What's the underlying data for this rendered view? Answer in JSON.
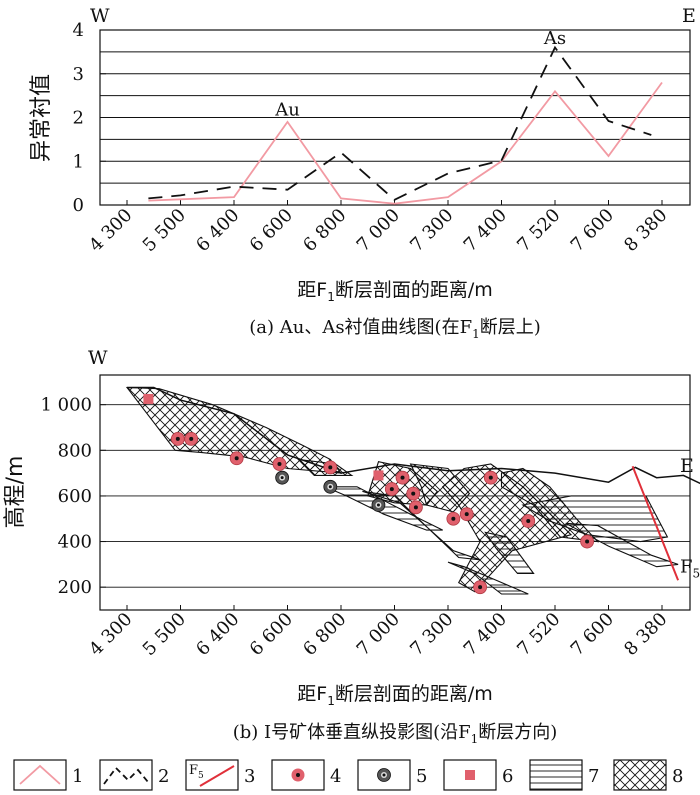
{
  "chart_data": [
    {
      "type": "line",
      "id": "a",
      "caption_main": "(a) Au、As衬值曲线图(在F",
      "caption_sub": "1",
      "caption_tail": "断层上)",
      "ylabel": "异常衬值",
      "xlabel_main": "距F",
      "xlabel_sub": "1",
      "xlabel_tail": "断层剖面的距离/m",
      "ylim": [
        0,
        4
      ],
      "yticks": [
        0,
        1,
        2,
        3,
        4
      ],
      "categories": [
        "4 300",
        "5 500",
        "6 400",
        "6 600",
        "6 800",
        "7 000",
        "7 300",
        "7 400",
        "7 520",
        "7 600",
        "8 380"
      ],
      "corner_left": "W",
      "corner_right": "E",
      "series": [
        {
          "name": "Au",
          "color": "#f29aa3",
          "dash": "none",
          "points": [
            [
              0.4,
              0.1
            ],
            [
              1,
              0.13
            ],
            [
              2,
              0.18
            ],
            [
              3,
              1.9
            ],
            [
              4,
              0.15
            ],
            [
              5,
              0.03
            ],
            [
              6,
              0.18
            ],
            [
              7,
              1.0
            ],
            [
              8,
              2.6
            ],
            [
              9,
              1.12
            ],
            [
              10,
              2.8
            ]
          ]
        },
        {
          "name": "As",
          "color": "#111111",
          "dash": "14 9",
          "points": [
            [
              0.4,
              0.15
            ],
            [
              1,
              0.22
            ],
            [
              2,
              0.42
            ],
            [
              3,
              0.35
            ],
            [
              4,
              1.2
            ],
            [
              5,
              0.12
            ],
            [
              6,
              0.72
            ],
            [
              7,
              1.02
            ],
            [
              8,
              3.6
            ],
            [
              9,
              1.92
            ],
            [
              9.8,
              1.6
            ]
          ]
        }
      ],
      "annotations": [
        {
          "text": "Au",
          "at": [
            3,
            2.05
          ]
        },
        {
          "text": "As",
          "at": [
            8,
            3.68
          ]
        }
      ]
    },
    {
      "type": "area",
      "id": "b",
      "caption_main": "(b) Ⅰ号矿体垂直纵投影图(沿F",
      "caption_sub": "1",
      "caption_tail": "断层方向)",
      "ylabel": "高程/m",
      "xlabel_main": "距F",
      "xlabel_sub": "1",
      "xlabel_tail": "断层剖面的距离/m",
      "ylim": [
        100,
        1130
      ],
      "yticks": [
        200,
        400,
        600,
        800,
        "1 000"
      ],
      "ytick_values": [
        200,
        400,
        600,
        800,
        1000
      ],
      "gridlines": [
        200,
        400,
        600,
        800,
        1000
      ],
      "categories": [
        "4 300",
        "5 500",
        "6 400",
        "6 600",
        "6 800",
        "7 000",
        "7 300",
        "7 400",
        "7 520",
        "7 600",
        "8 380"
      ],
      "corner_left": "W",
      "corner_right": "E",
      "fault_label": "F",
      "fault_label_sub": "5",
      "topography": [
        [
          0.0,
          1075
        ],
        [
          0.5,
          1075
        ],
        [
          1,
          1020
        ],
        [
          2,
          960
        ],
        [
          3,
          780
        ],
        [
          4,
          700
        ],
        [
          5,
          740
        ],
        [
          6,
          710
        ],
        [
          7,
          720
        ],
        [
          8,
          700
        ],
        [
          9,
          660
        ],
        [
          9.5,
          725
        ],
        [
          9.9,
          680
        ],
        [
          10.4,
          690
        ],
        [
          11.2,
          600
        ]
      ],
      "fault": [
        [
          9.45,
          730
        ],
        [
          10.3,
          230
        ]
      ],
      "ore_bodies_crosshatch": [
        [
          [
            0.0,
            1075
          ],
          [
            0.6,
            1070
          ],
          [
            1.6,
            1000
          ],
          [
            2.6,
            900
          ],
          [
            3.3,
            820
          ],
          [
            3.8,
            760
          ],
          [
            4.0,
            700
          ],
          [
            3.0,
            720
          ],
          [
            2.2,
            770
          ],
          [
            1.4,
            790
          ],
          [
            0.9,
            800
          ]
        ],
        [
          [
            3.2,
            760
          ],
          [
            3.9,
            740
          ],
          [
            4.2,
            690
          ],
          [
            3.5,
            690
          ]
        ],
        [
          [
            4.7,
            750
          ],
          [
            5.3,
            720
          ],
          [
            5.8,
            620
          ],
          [
            5.6,
            560
          ],
          [
            5.0,
            570
          ],
          [
            4.5,
            600
          ]
        ],
        [
          [
            5.3,
            740
          ],
          [
            6.0,
            720
          ],
          [
            6.4,
            610
          ],
          [
            6.1,
            530
          ],
          [
            5.6,
            560
          ],
          [
            5.5,
            640
          ]
        ],
        [
          [
            6.3,
            720
          ],
          [
            6.8,
            740
          ],
          [
            7.4,
            640
          ],
          [
            8.3,
            430
          ],
          [
            7.2,
            360
          ],
          [
            6.5,
            180
          ],
          [
            6.2,
            220
          ],
          [
            6.6,
            400
          ],
          [
            6.2,
            560
          ],
          [
            5.9,
            640
          ]
        ],
        [
          [
            7.0,
            700
          ],
          [
            7.4,
            720
          ],
          [
            7.9,
            640
          ],
          [
            8.4,
            500
          ],
          [
            8.8,
            400
          ],
          [
            8.1,
            420
          ],
          [
            7.6,
            560
          ],
          [
            7.0,
            640
          ]
        ]
      ],
      "ore_bodies_hatched": [
        [
          [
            3.7,
            640
          ],
          [
            4.3,
            640
          ],
          [
            5.3,
            520
          ],
          [
            5.9,
            450
          ],
          [
            5.6,
            450
          ],
          [
            4.8,
            520
          ],
          [
            4.1,
            600
          ]
        ],
        [
          [
            4.4,
            620
          ],
          [
            5.0,
            600
          ],
          [
            6.2,
            330
          ],
          [
            6.6,
            320
          ],
          [
            6.1,
            360
          ],
          [
            5.1,
            570
          ]
        ],
        [
          [
            6.7,
            440
          ],
          [
            7.1,
            420
          ],
          [
            7.6,
            260
          ],
          [
            7.3,
            260
          ],
          [
            6.9,
            370
          ]
        ],
        [
          [
            7.4,
            560
          ],
          [
            8.3,
            600
          ],
          [
            9.7,
            600
          ],
          [
            10.1,
            420
          ],
          [
            9.6,
            400
          ],
          [
            8.6,
            430
          ],
          [
            7.9,
            490
          ]
        ],
        [
          [
            8.2,
            480
          ],
          [
            8.8,
            470
          ],
          [
            9.8,
            340
          ],
          [
            10.3,
            300
          ],
          [
            9.9,
            290
          ],
          [
            9.0,
            380
          ]
        ],
        [
          [
            6.0,
            310
          ],
          [
            6.5,
            260
          ],
          [
            7.0,
            170
          ],
          [
            7.5,
            170
          ],
          [
            6.9,
            230
          ],
          [
            6.3,
            290
          ]
        ]
      ],
      "samples_au": [
        [
          0.95,
          850
        ],
        [
          1.2,
          850
        ],
        [
          2.05,
          765
        ],
        [
          2.85,
          740
        ],
        [
          3.8,
          725
        ],
        [
          4.95,
          630
        ],
        [
          5.15,
          680
        ],
        [
          5.35,
          610
        ],
        [
          5.4,
          550
        ],
        [
          6.1,
          500
        ],
        [
          6.35,
          520
        ],
        [
          6.8,
          680
        ],
        [
          7.5,
          490
        ],
        [
          6.6,
          200
        ],
        [
          8.6,
          400
        ]
      ],
      "samples_black": [
        [
          2.9,
          680
        ],
        [
          3.8,
          640
        ],
        [
          4.7,
          560
        ]
      ],
      "samples_square": [
        [
          0.4,
          1025
        ],
        [
          4.7,
          690
        ]
      ]
    }
  ],
  "legend": [
    {
      "num": "1",
      "kind": "au-line"
    },
    {
      "num": "2",
      "kind": "as-line"
    },
    {
      "num": "3",
      "kind": "fault",
      "label": "F",
      "label_sub": "5"
    },
    {
      "num": "4",
      "kind": "au-sample"
    },
    {
      "num": "5",
      "kind": "black-sample"
    },
    {
      "num": "6",
      "kind": "square-sample"
    },
    {
      "num": "7",
      "kind": "hatch"
    },
    {
      "num": "8",
      "kind": "crosshatch"
    }
  ],
  "colors": {
    "au_pink": "#f29aa3",
    "sample_red": "#e0606c",
    "axis": "#111111"
  }
}
